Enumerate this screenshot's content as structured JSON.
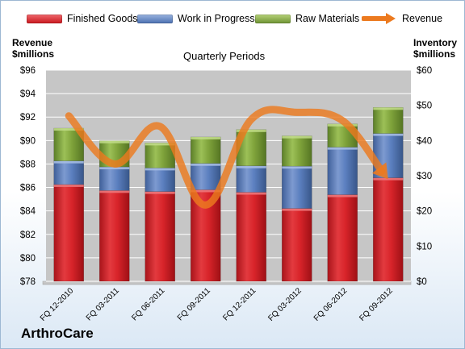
{
  "legend": {
    "finished": "Finished Goods",
    "wip": "Work in Progress",
    "raw": "Raw Materials",
    "revenue": "Revenue"
  },
  "left_axis_title": [
    "Revenue",
    "$millions"
  ],
  "right_axis_title": [
    "Inventory",
    "$millions"
  ],
  "subtitle": "Quarterly Periods",
  "company": "ArthroCare",
  "colors": {
    "finished": "#d8242a",
    "wip": "#5b7fbf",
    "raw": "#7fa33b",
    "revenue": "#ec7a1f"
  },
  "chart_data": {
    "type": "bar",
    "stacked": true,
    "categories": [
      "FQ 12-2010",
      "FQ 03-2011",
      "FQ 06-2011",
      "FQ 09-2011",
      "FQ 12-2011",
      "FQ 03-2012",
      "FQ 06-2012",
      "FQ 09-2012"
    ],
    "series": [
      {
        "name": "Finished Goods",
        "axis": "right",
        "values": [
          27.5,
          25.8,
          25.5,
          26.0,
          25.3,
          20.7,
          24.6,
          29.4
        ]
      },
      {
        "name": "Work in Progress",
        "axis": "right",
        "values": [
          6.7,
          6.7,
          6.7,
          7.5,
          7.5,
          12.0,
          13.5,
          12.6
        ]
      },
      {
        "name": "Raw Materials",
        "axis": "right",
        "values": [
          9.3,
          7.4,
          7.1,
          7.5,
          10.3,
          8.6,
          6.6,
          7.4
        ]
      },
      {
        "name": "Revenue",
        "axis": "left",
        "type": "line",
        "values": [
          92.1,
          88.0,
          91.2,
          84.5,
          91.8,
          92.4,
          91.7,
          86.7
        ]
      }
    ],
    "left_axis": {
      "min": 78,
      "max": 96,
      "step": 2,
      "prefix": "$"
    },
    "right_axis": {
      "min": 0,
      "max": 60,
      "step": 10,
      "prefix": "$"
    },
    "grid": true
  }
}
